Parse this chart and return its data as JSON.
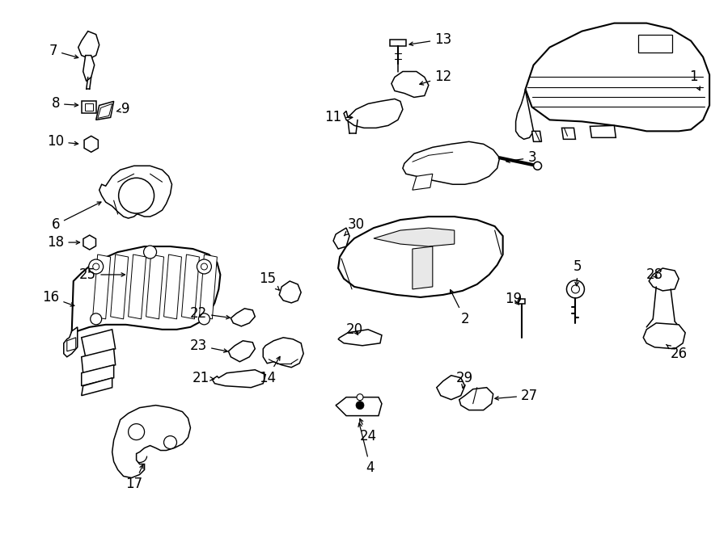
{
  "background_color": "#ffffff",
  "fig_width": 9.0,
  "fig_height": 6.61,
  "dpi": 100
}
